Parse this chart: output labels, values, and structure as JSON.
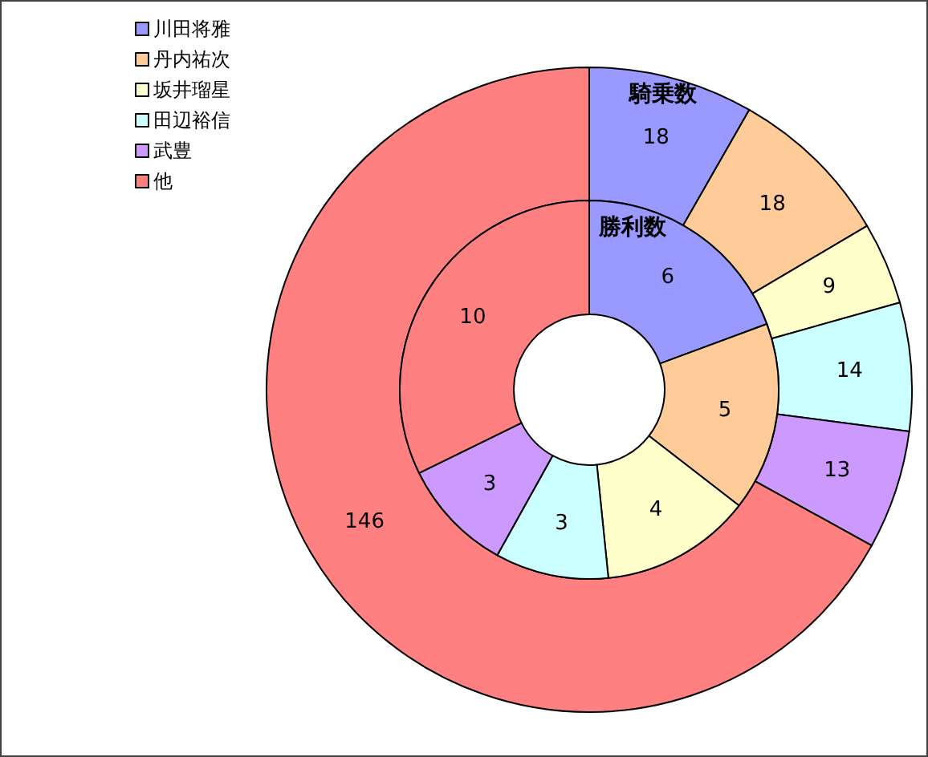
{
  "chart_data": {
    "type": "donut",
    "categories": [
      "川田将雅",
      "丹内祐次",
      "坂井瑠星",
      "田辺裕信",
      "武豊",
      "他"
    ],
    "colors": [
      "#9999ff",
      "#ffcc99",
      "#ffffcc",
      "#ccffff",
      "#cc99ff",
      "#ff8080"
    ],
    "series": [
      {
        "name": "騎乗数",
        "values": [
          18,
          18,
          9,
          14,
          13,
          146
        ]
      },
      {
        "name": "勝利数",
        "values": [
          6,
          5,
          4,
          3,
          3,
          10
        ]
      }
    ],
    "data_labels": true,
    "legend": "top left"
  }
}
